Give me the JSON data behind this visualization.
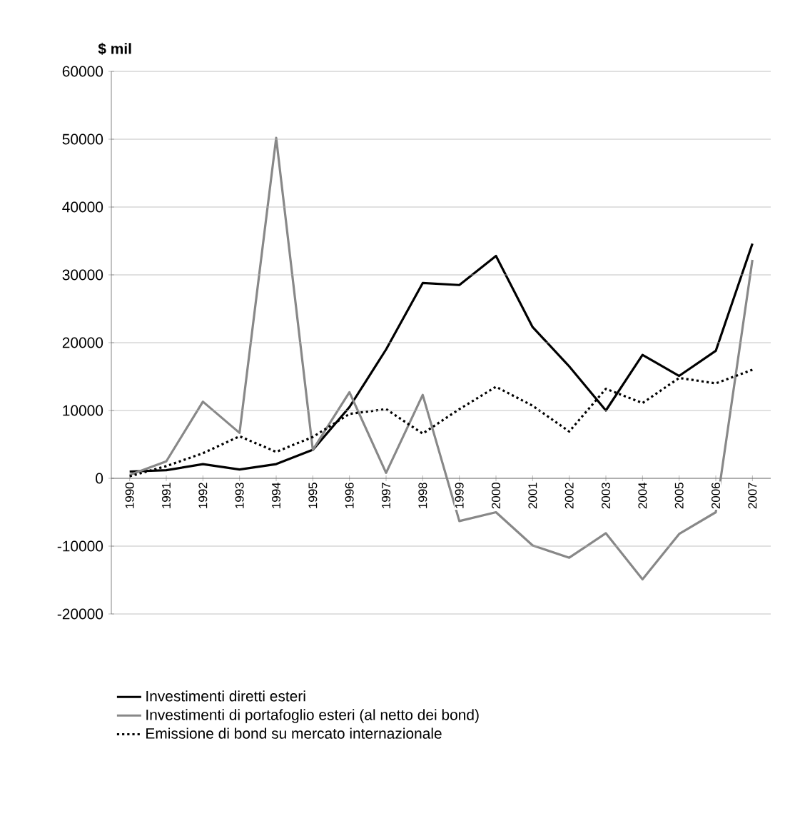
{
  "chart_data": {
    "type": "line",
    "ylabel": "$ mil",
    "categories": [
      "1990",
      "1991",
      "1992",
      "1993",
      "1994",
      "1995",
      "1996",
      "1997",
      "1998",
      "1999",
      "2000",
      "2001",
      "2002",
      "2003",
      "2004",
      "2005",
      "2006",
      "2007"
    ],
    "series": [
      {
        "name": "Investimenti diretti esteri",
        "color": "#000000",
        "line_style": "solid",
        "values": [
          1000,
          1200,
          2100,
          1300,
          2100,
          4200,
          10500,
          19000,
          28800,
          28500,
          32800,
          22300,
          16500,
          10000,
          18200,
          15100,
          18800,
          34600
        ]
      },
      {
        "name": "Investimenti di portafoglio esteri (al netto dei bond)",
        "color": "#888888",
        "line_style": "solid",
        "values": [
          500,
          2500,
          11300,
          6700,
          50200,
          4200,
          12700,
          800,
          12300,
          -6300,
          -5000,
          -9900,
          -11700,
          -8100,
          -14900,
          -8200,
          -5000,
          32200
        ]
      },
      {
        "name": "Emissione di bond su mercato internazionale",
        "color": "#000000",
        "line_style": "dotted",
        "values": [
          300,
          1800,
          3700,
          6200,
          3900,
          6100,
          9500,
          10200,
          6600,
          10200,
          13500,
          10700,
          6900,
          13200,
          11100,
          14800,
          14000,
          16000
        ]
      }
    ],
    "ylim": [
      -20000,
      60000
    ],
    "yticks": [
      -20000,
      -10000,
      0,
      10000,
      20000,
      30000,
      40000,
      50000,
      60000
    ],
    "grid": "y",
    "legend": "bottom",
    "marker": "none"
  }
}
